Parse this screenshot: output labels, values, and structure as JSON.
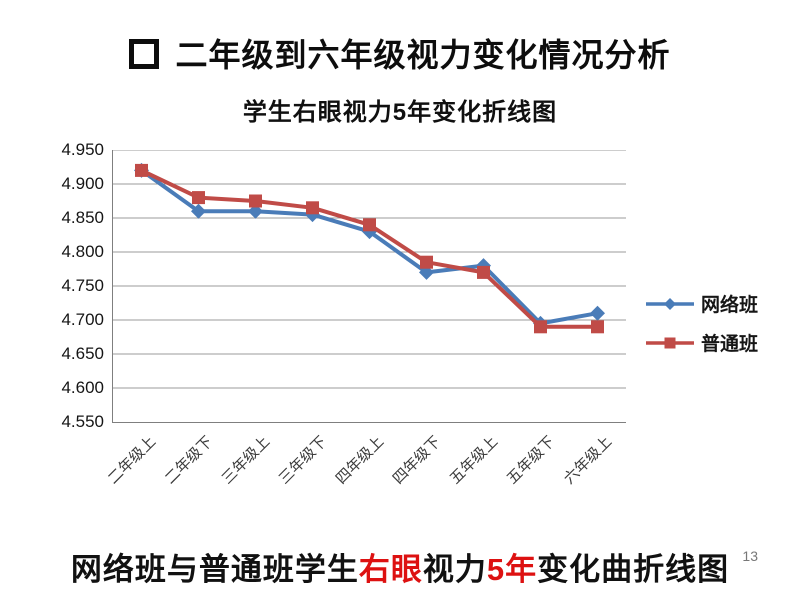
{
  "slide": {
    "title": "二年级到六年级视力变化情况分析",
    "page_number": "13"
  },
  "caption": {
    "parts": [
      {
        "text": "网络班与普通班学生",
        "color": "#111111"
      },
      {
        "text": "右眼",
        "color": "#dd1111"
      },
      {
        "text": "视力",
        "color": "#111111"
      },
      {
        "text": "5年",
        "color": "#dd1111"
      },
      {
        "text": "变化曲折线图",
        "color": "#111111"
      }
    ]
  },
  "chart_data": {
    "type": "line",
    "title": "学生右眼视力5年变化折线图",
    "categories": [
      "二年级上",
      "二年级下",
      "三年级上",
      "三年级下",
      "四年级上",
      "四年级下",
      "五年级上",
      "五年级下",
      "六年级上"
    ],
    "series": [
      {
        "name": "网络班",
        "color": "#4a7cb8",
        "marker": "diamond",
        "values": [
          4.92,
          4.86,
          4.86,
          4.855,
          4.83,
          4.77,
          4.78,
          4.695,
          4.71
        ]
      },
      {
        "name": "普通班",
        "color": "#c04b47",
        "marker": "square",
        "values": [
          4.92,
          4.88,
          4.875,
          4.865,
          4.84,
          4.785,
          4.77,
          4.69,
          4.69
        ]
      }
    ],
    "ylim": [
      4.55,
      4.95
    ],
    "ytick_step": 0.05,
    "yticks": [
      "4.950",
      "4.900",
      "4.850",
      "4.800",
      "4.750",
      "4.700",
      "4.650",
      "4.600",
      "4.550"
    ],
    "grid": true,
    "grid_color": "#9b9b9b",
    "axis_color": "#7f7f7f",
    "legend_position": "right",
    "xlabel": "",
    "ylabel": ""
  }
}
